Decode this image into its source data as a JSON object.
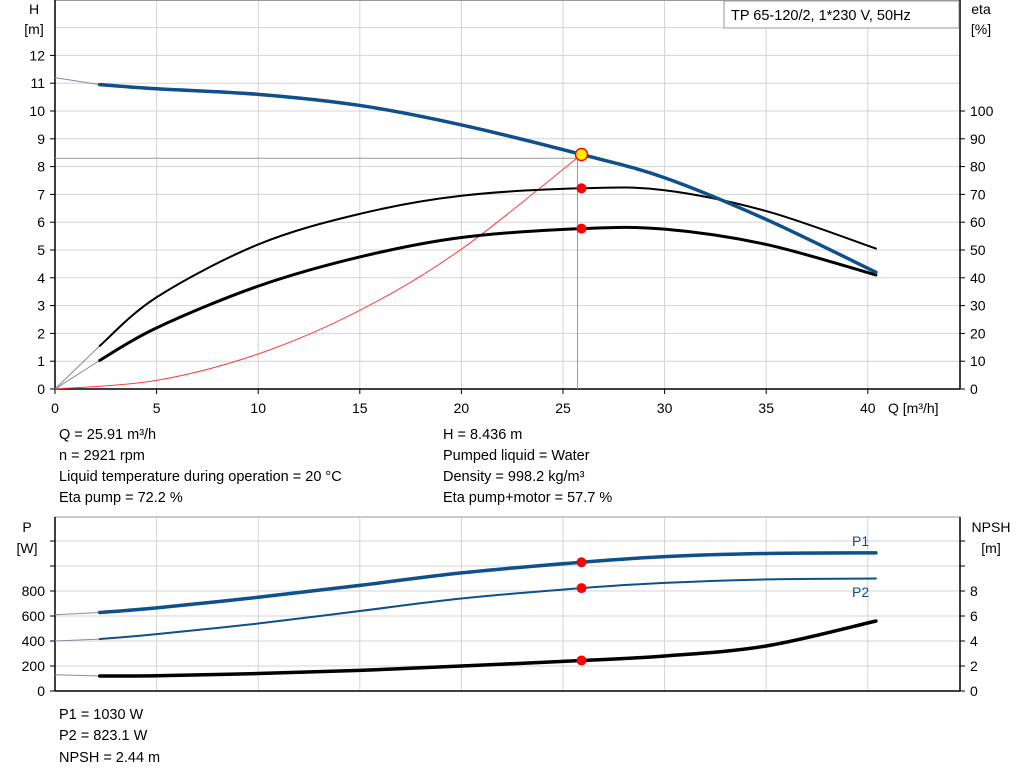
{
  "chart_data": [
    {
      "type": "line",
      "title": "TP 65-120/2, 1*230 V, 50Hz",
      "xlabel": "Q [m³/h]",
      "ylabel_left": [
        "H",
        "[m]"
      ],
      "ylabel_right": [
        "eta",
        "[%]"
      ],
      "xlim": [
        0,
        44
      ],
      "ylim_left": [
        0,
        14
      ],
      "ylim_right": [
        0,
        140
      ],
      "x_ticks": [
        "0",
        "5",
        "10",
        "15",
        "20",
        "25",
        "30",
        "35",
        "40"
      ],
      "y_ticks_left": [
        "0",
        "1",
        "2",
        "3",
        "4",
        "5",
        "6",
        "7",
        "8",
        "9",
        "10",
        "11",
        "12"
      ],
      "y_ticks_right": [
        "0",
        "10",
        "20",
        "30",
        "40",
        "50",
        "60",
        "70",
        "80",
        "90",
        "100"
      ],
      "grid": true,
      "series": [
        {
          "key": "H",
          "axis": "left",
          "color": "#0f4f8a",
          "x": [
            0,
            2.2,
            5,
            10,
            15,
            20,
            25.91,
            30,
            35,
            40.4
          ],
          "y": [
            11.2,
            10.95,
            10.8,
            10.6,
            10.2,
            9.5,
            8.436,
            7.6,
            6.1,
            4.2
          ]
        },
        {
          "key": "eta_pump",
          "axis": "right",
          "color": "#000000",
          "x": [
            2.2,
            5,
            10,
            15,
            20,
            25.91,
            30,
            35,
            40.4
          ],
          "y": [
            15.5,
            33,
            52,
            63,
            69.5,
            72.2,
            71.5,
            64,
            50.5
          ]
        },
        {
          "key": "eta_pump_motor",
          "axis": "right",
          "color": "#000000",
          "x": [
            2.2,
            5,
            10,
            15,
            20,
            25.91,
            30,
            35,
            40.4
          ],
          "y": [
            10.3,
            22,
            37,
            47.5,
            54.5,
            57.7,
            57.5,
            52,
            41
          ]
        },
        {
          "key": "system_curve",
          "axis": "left",
          "color": "#ff3b3b",
          "x": [
            0,
            5,
            10,
            15,
            20,
            25.91
          ],
          "y": [
            0,
            0.31,
            1.26,
            2.83,
            5.03,
            8.436
          ]
        }
      ],
      "duty_point": {
        "Q": 25.91,
        "H": 8.436,
        "eta_pump": 72.2,
        "eta_pump_motor": 57.7,
        "marker_color": "#ffee00"
      },
      "point_color": "#ff0000"
    },
    {
      "type": "line",
      "xlim": [
        0,
        44
      ],
      "ylabel_left": [
        "P",
        "[W]"
      ],
      "ylabel_right": [
        "NPSH",
        "[m]"
      ],
      "ylim_left": [
        0,
        1400
      ],
      "ylim_right": [
        0,
        14
      ],
      "y_ticks_left": [
        "0",
        "200",
        "400",
        "600",
        "800"
      ],
      "y_ticks_right": [
        "0",
        "2",
        "4",
        "6",
        "8"
      ],
      "grid": true,
      "series": [
        {
          "key": "P1",
          "name": "P1",
          "axis": "left",
          "color": "#0f4f8a",
          "x": [
            0,
            2.2,
            5,
            10,
            15,
            20,
            25.91,
            30,
            35,
            40.4
          ],
          "y": [
            610,
            628,
            665,
            750,
            845,
            945,
            1030,
            1075,
            1100,
            1105
          ]
        },
        {
          "key": "P2",
          "name": "P2",
          "axis": "left",
          "color": "#0f4f8a",
          "x": [
            0,
            2.2,
            5,
            10,
            15,
            20,
            25.91,
            30,
            35,
            40.4
          ],
          "y": [
            400,
            415,
            455,
            540,
            640,
            740,
            823.1,
            865,
            893,
            900
          ]
        },
        {
          "key": "NPSH",
          "axis": "right",
          "color": "#000000",
          "x": [
            0,
            2.2,
            5,
            10,
            15,
            20,
            25.91,
            30,
            35,
            40.4
          ],
          "y": [
            1.3,
            1.2,
            1.22,
            1.4,
            1.65,
            2.0,
            2.44,
            2.8,
            3.6,
            5.6
          ]
        }
      ]
    }
  ],
  "info_top": {
    "q": "Q = 25.91 m³/h",
    "n": "n = 2921 rpm",
    "temp": "Liquid temperature during operation = 20 °C",
    "eta_pump": "Eta pump = 72.2 %",
    "h": "H = 8.436 m",
    "liquid": "Pumped liquid = Water",
    "density": "Density = 998.2 kg/m³",
    "eta_pm": "Eta pump+motor = 57.7 %"
  },
  "info_bottom": {
    "p1": "P1 = 1030 W",
    "p2": "P2 = 823.1 W",
    "npsh": "NPSH = 2.44 m"
  }
}
